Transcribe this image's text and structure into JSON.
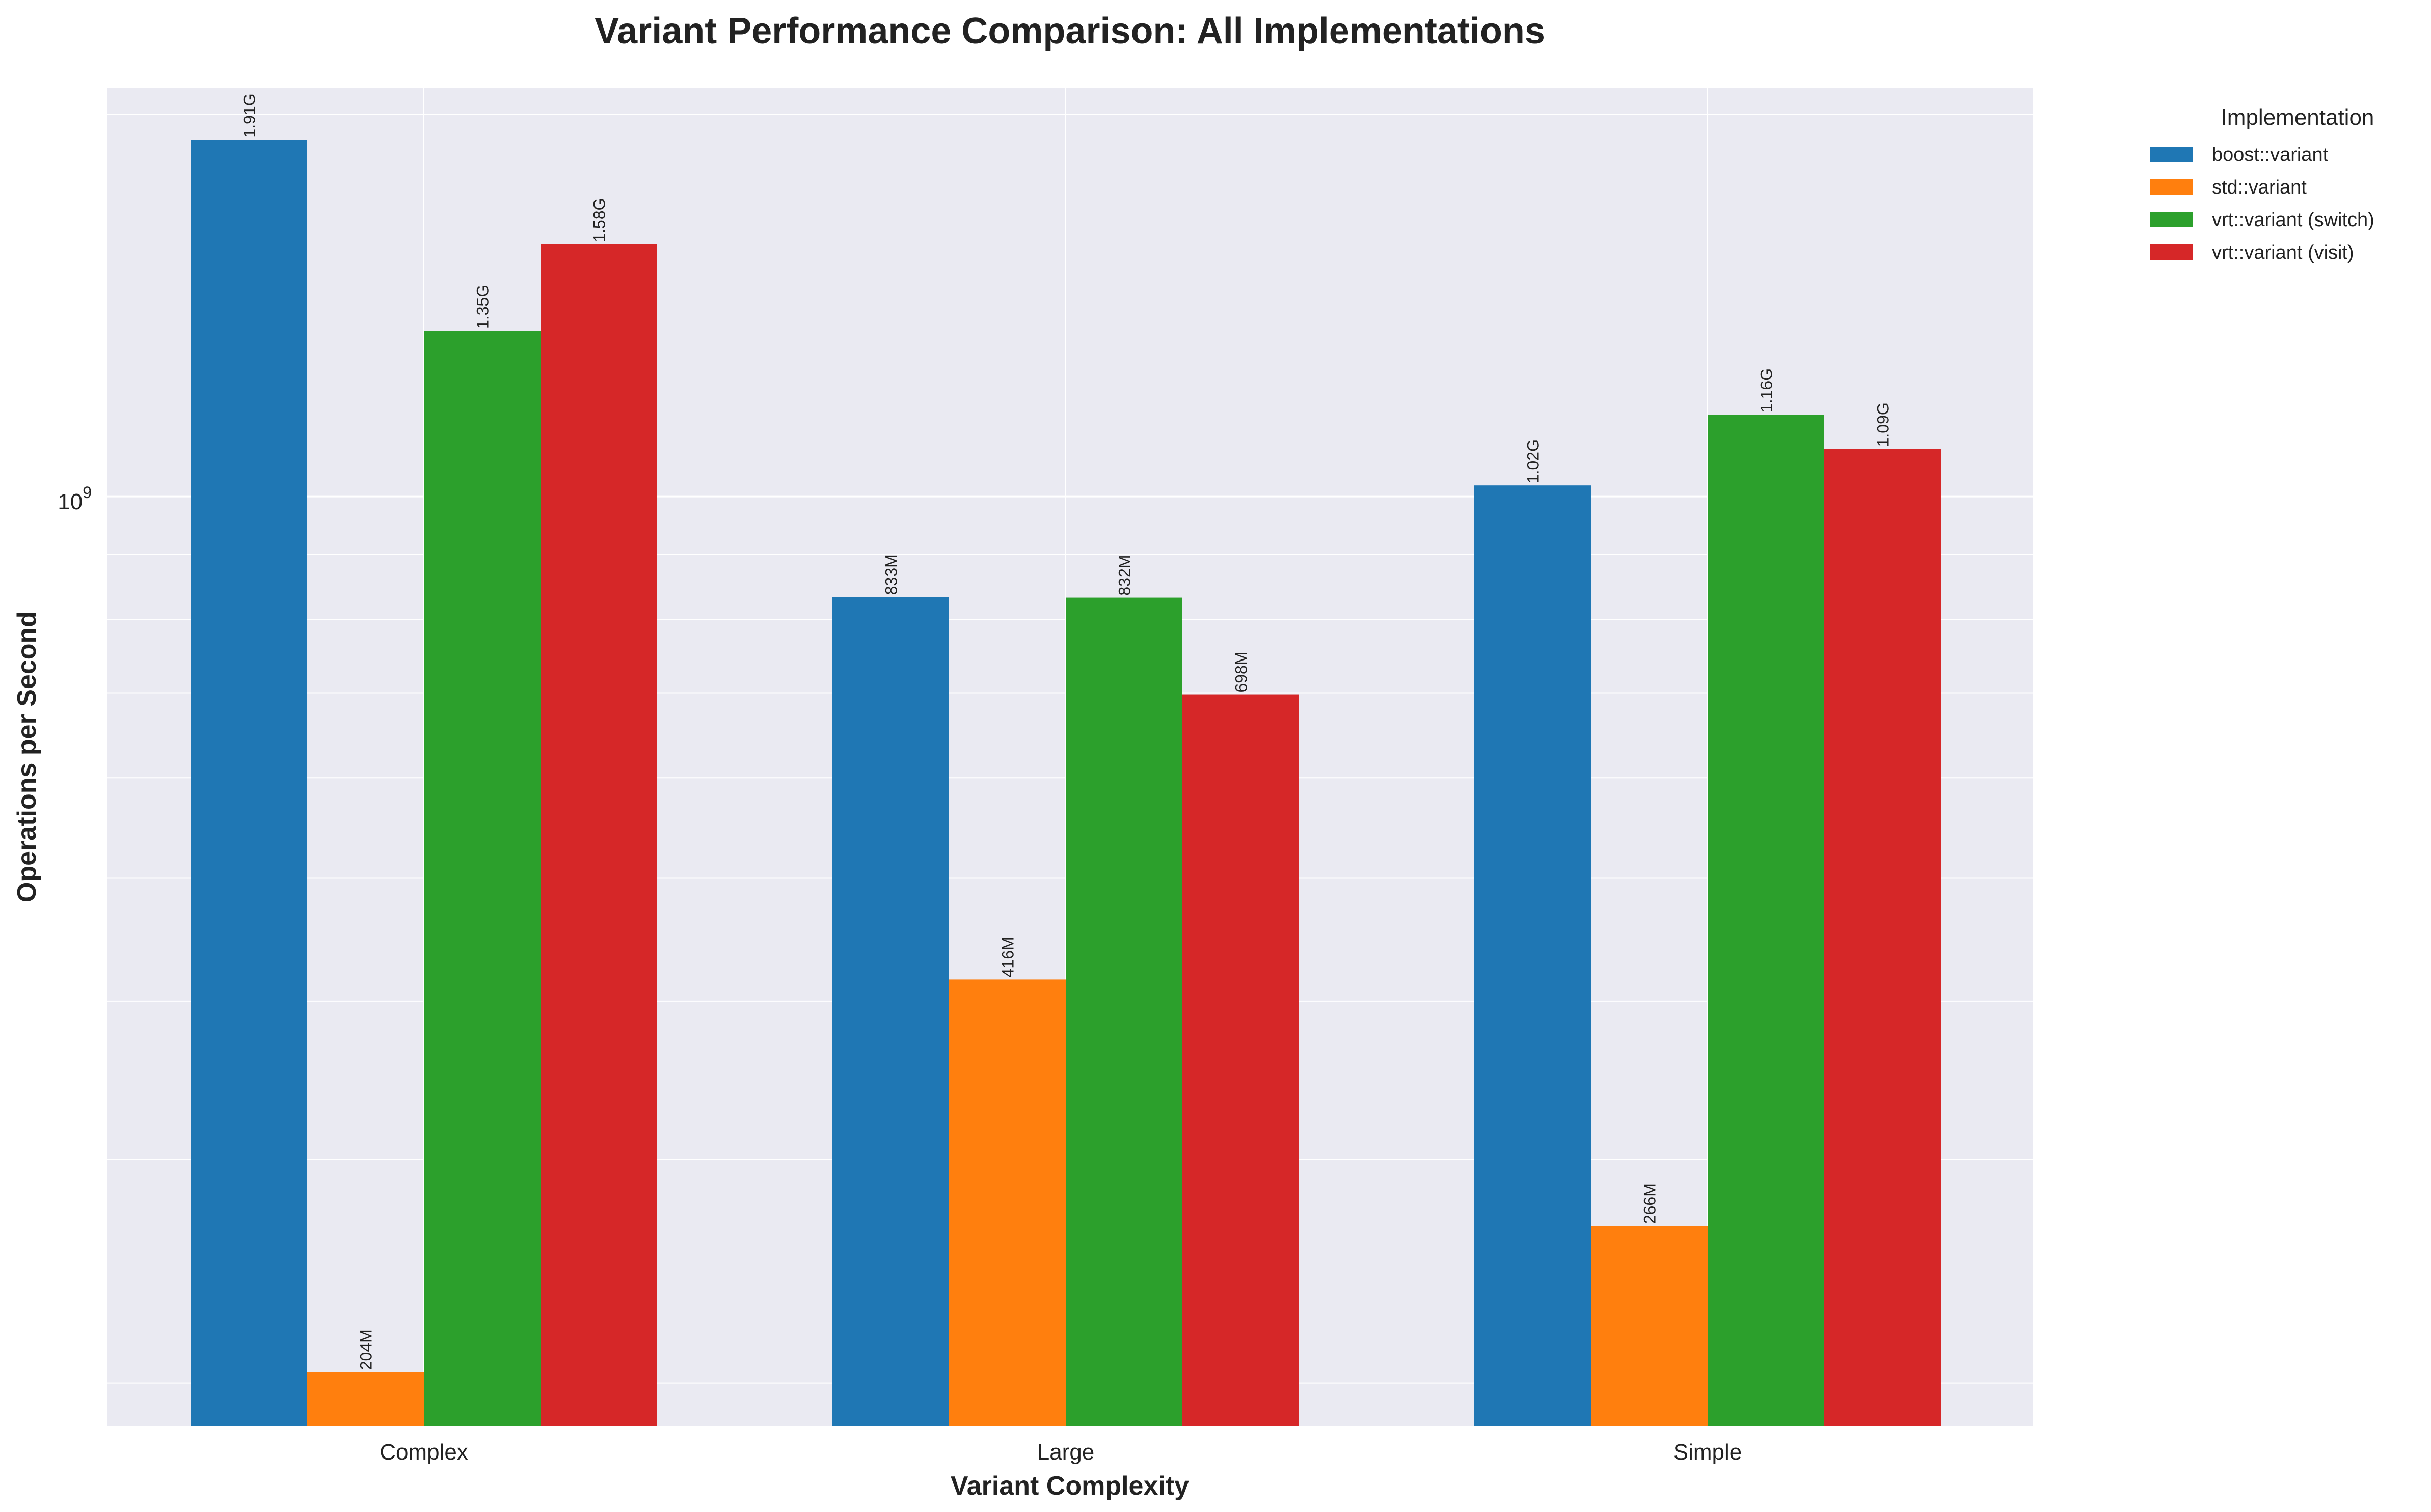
{
  "chart_data": {
    "type": "bar",
    "title": "Variant Performance Comparison: All Implementations",
    "xlabel": "Variant Complexity",
    "ylabel": "Operations per Second",
    "yscale": "log",
    "ylim": [
      185000000,
      2100000000
    ],
    "y_major_tick_label": "10^9",
    "categories": [
      "Complex",
      "Large",
      "Simple"
    ],
    "series": [
      {
        "name": "boost::variant",
        "color": "#1f77b4",
        "values": [
          1910000000,
          833000000,
          1020000000
        ],
        "labels": [
          "1.91G",
          "833M",
          "1.02G"
        ]
      },
      {
        "name": "std::variant",
        "color": "#ff7f0e",
        "values": [
          204000000,
          416000000,
          266000000
        ],
        "labels": [
          "204M",
          "416M",
          "266M"
        ]
      },
      {
        "name": "vrt::variant (switch)",
        "color": "#2ca02c",
        "values": [
          1350000000,
          832000000,
          1160000000
        ],
        "labels": [
          "1.35G",
          "832M",
          "1.16G"
        ]
      },
      {
        "name": "vrt::variant (visit)",
        "color": "#d62728",
        "values": [
          1580000000,
          698000000,
          1090000000
        ],
        "labels": [
          "1.58G",
          "698M",
          "1.09G"
        ]
      }
    ],
    "legend": {
      "title": "Implementation",
      "placement": "outside-right"
    },
    "grid": true,
    "background_color": "#eaeaf2"
  }
}
